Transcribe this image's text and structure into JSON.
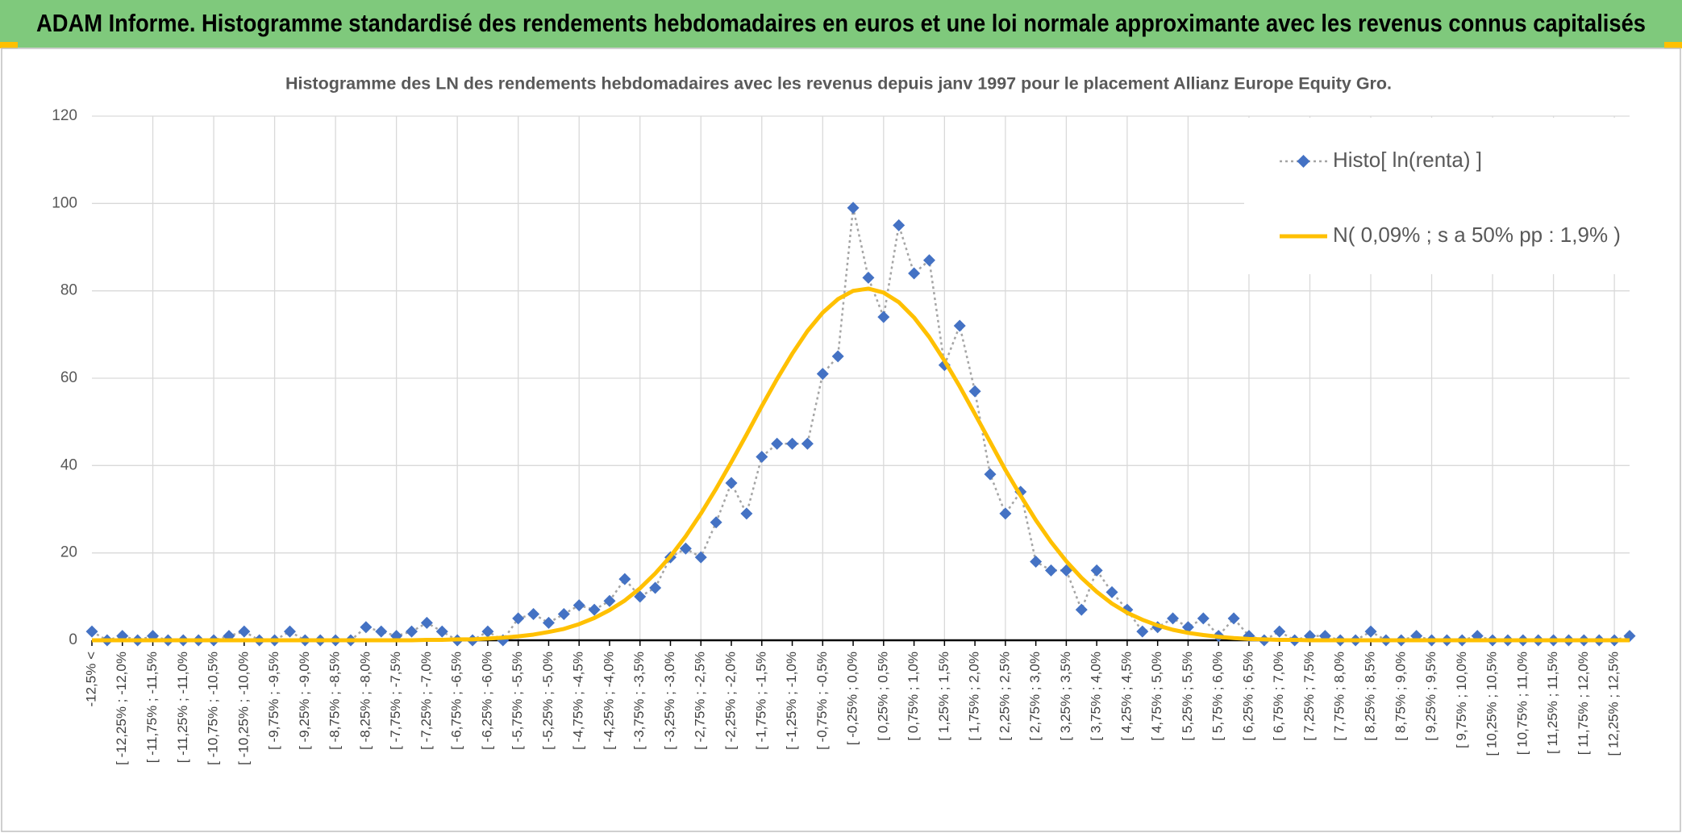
{
  "chart_data": {
    "type": "line",
    "title": "ADAM Informe. Histogramme standardisé des rendements hebdomadaires en euros et une loi normale approximante avec les revenus connus capitalisés",
    "subtitle": "Histogramme des LN des rendements hebdomadaires avec les revenus depuis janv 1997 pour le placement Allianz Europe Equity Gro.",
    "categories": [
      "-12,5% <",
      null,
      "[ -12,25% ; -12,0%",
      null,
      "[ -11,75% ; -11,5%",
      null,
      "[ -11,25% ; -11,0%",
      null,
      "[ -10,75% ; -10,5%",
      null,
      "[ -10,25% ; -10,0%",
      null,
      "[ -9,75% ; -9,5%",
      null,
      "[ -9,25% ; -9,0%",
      null,
      "[ -8,75% ; -8,5%",
      null,
      "[ -8,25% ; -8,0%",
      null,
      "[ -7,75% ; -7,5%",
      null,
      "[ -7,25% ; -7,0%",
      null,
      "[ -6,75% ; -6,5%",
      null,
      "[ -6,25% ; -6,0%",
      null,
      "[ -5,75% ; -5,5%",
      null,
      "[ -5,25% ; -5,0%",
      null,
      "[ -4,75% ; -4,5%",
      null,
      "[ -4,25% ; -4,0%",
      null,
      "[ -3,75% ; -3,5%",
      null,
      "[ -3,25% ; -3,0%",
      null,
      "[ -2,75% ; -2,5%",
      null,
      "[ -2,25% ; -2,0%",
      null,
      "[ -1,75% ; -1,5%",
      null,
      "[ -1,25% ; -1,0%",
      null,
      "[ -0,75% ; -0,5%",
      null,
      "[ -0,25% ; 0,0%",
      null,
      "[ 0,25% ; 0,5%",
      null,
      "[ 0,75% ; 1,0%",
      null,
      "[ 1,25% ; 1,5%",
      null,
      "[ 1,75% ; 2,0%",
      null,
      "[ 2,25% ; 2,5%",
      null,
      "[ 2,75% ; 3,0%",
      null,
      "[ 3,25% ; 3,5%",
      null,
      "[ 3,75% ; 4,0%",
      null,
      "[ 4,25% ; 4,5%",
      null,
      "[ 4,75% ; 5,0%",
      null,
      "[ 5,25% ; 5,5%",
      null,
      "[ 5,75% ; 6,0%",
      null,
      "[ 6,25% ; 6,5%",
      null,
      "[ 6,75% ; 7,0%",
      null,
      "[ 7,25% ; 7,5%",
      null,
      "[ 7,75% ; 8,0%",
      null,
      "[ 8,25% ; 8,5%",
      null,
      "[ 8,75% ; 9,0%",
      null,
      "[ 9,25% ; 9,5%",
      null,
      "[ 9,75% ; 10,0%",
      null,
      "[ 10,25% ; 10,5%",
      null,
      "[ 10,75% ; 11,0%",
      null,
      "[ 11,25% ; 11,5%",
      null,
      "[ 11,75% ; 12,0%",
      null,
      "[ 12,25% ; 12,5%",
      null
    ],
    "series": [
      {
        "name": "Histo[ ln(renta) ]",
        "color": "#4472c4",
        "line_color": "#a5a5a5",
        "line_style": "dotted",
        "marker": "diamond",
        "values": [
          2,
          0,
          1,
          0,
          1,
          0,
          0,
          0,
          0,
          1,
          2,
          0,
          0,
          2,
          0,
          0,
          0,
          0,
          3,
          2,
          1,
          2,
          4,
          2,
          0,
          0,
          2,
          0,
          5,
          6,
          4,
          6,
          8,
          7,
          9,
          14,
          10,
          12,
          19,
          21,
          19,
          27,
          36,
          29,
          42,
          45,
          45,
          45,
          61,
          65,
          99,
          83,
          74,
          95,
          84,
          87,
          63,
          72,
          57,
          38,
          29,
          34,
          18,
          16,
          16,
          7,
          16,
          11,
          7,
          2,
          3,
          5,
          3,
          5,
          1,
          5,
          1,
          0,
          2,
          0,
          1,
          1,
          0,
          0,
          2,
          0,
          0,
          1,
          0,
          0,
          0,
          1,
          0,
          0,
          0,
          0,
          0,
          0,
          0,
          0,
          0,
          1
        ]
      },
      {
        "name": "N( 0,09% ; s a 50% pp : 1,9% )",
        "color": "#ffc000",
        "line_color": "#ffc000",
        "line_style": "solid",
        "marker": "none",
        "values": [
          0,
          0,
          0,
          0,
          0,
          0,
          0,
          0,
          0,
          0,
          0,
          0,
          0,
          0,
          0,
          0,
          0,
          0,
          0,
          0,
          0,
          0,
          0.1,
          0.1,
          0.2,
          0.2,
          0.4,
          0.6,
          0.9,
          1.3,
          1.9,
          2.6,
          3.7,
          5.1,
          6.9,
          9.1,
          11.9,
          15.3,
          19.2,
          23.8,
          29,
          34.7,
          40.8,
          47.1,
          53.6,
          59.8,
          65.6,
          70.8,
          75,
          78.1,
          80,
          80.5,
          79.6,
          77.4,
          73.9,
          69.4,
          64,
          58.1,
          51.8,
          45.4,
          39,
          33.1,
          27.5,
          22.5,
          18.1,
          14.3,
          11.1,
          8.4,
          6.3,
          4.7,
          3.4,
          2.4,
          1.7,
          1.2,
          0.8,
          0.5,
          0.3,
          0.2,
          0.1,
          0.1,
          0,
          0,
          0,
          0,
          0,
          0,
          0,
          0,
          0,
          0,
          0,
          0,
          0,
          0,
          0,
          0,
          0,
          0,
          0,
          0,
          0,
          0
        ]
      }
    ],
    "ylim": [
      0,
      120
    ],
    "yticks": [
      0,
      20,
      40,
      60,
      80,
      100,
      120
    ],
    "grid": true,
    "legend": "upper right"
  }
}
